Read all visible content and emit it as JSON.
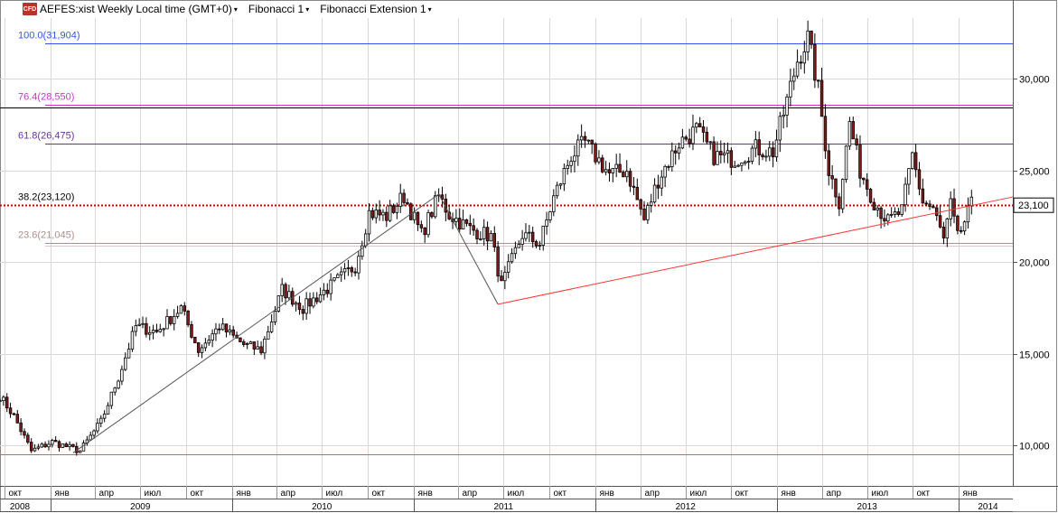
{
  "header": {
    "badge": "CFD",
    "symbol": "AEFES:xist Weekly Local time (GMT+0)",
    "study1": "Fibonacci 1",
    "study2": "Fibonacci Extension 1",
    "caret": "▾"
  },
  "chart_data": {
    "type": "candlestick",
    "yticks": [
      {
        "value": 10000,
        "label": "10,000"
      },
      {
        "value": 15000,
        "label": "15,000"
      },
      {
        "value": 20000,
        "label": "20,000"
      },
      {
        "value": 25000,
        "label": "25,000"
      },
      {
        "value": 30000,
        "label": "30,000"
      }
    ],
    "ylim": [
      7800,
      33300
    ],
    "xlim": [
      "2008-09-22",
      "2014-04-20"
    ],
    "last_price": {
      "value": 23100,
      "label": "23,100"
    },
    "fib_levels": [
      {
        "label": "100.0(31,904)",
        "value": 31904,
        "color": "#3355ee"
      },
      {
        "label": "76.4(28,550)",
        "value": 28550,
        "color": "#cc33cc"
      },
      {
        "label": "61.8(26,475)",
        "value": 26475,
        "color": "#663399"
      },
      {
        "label": "38.2(23,120)",
        "value": 23120,
        "color": "#000000",
        "dotted_color": "#cc0000"
      },
      {
        "label": "23.6(21,045)",
        "value": 21045,
        "color": "#ad8f8f"
      }
    ],
    "horizontal_lines": [
      {
        "value": 28430,
        "color": "#000000"
      },
      {
        "value": 9530,
        "color": "#ee5555"
      }
    ],
    "fib_lines": [
      {
        "from": [
          "2009-02-16",
          9600
        ],
        "to": [
          "2011-02-21",
          23700
        ],
        "color": "#555555"
      },
      {
        "from": [
          "2011-02-21",
          23700
        ],
        "to": [
          "2011-06-20",
          17700
        ],
        "color": "#555555"
      },
      {
        "from": [
          "2011-06-20",
          17700
        ],
        "to": [
          "2014-04-20",
          23550
        ],
        "color": "#ff3333"
      }
    ],
    "month_ticks": [
      {
        "date": "2008-10-01",
        "label": "окт"
      },
      {
        "date": "2009-01-01",
        "label": "янв"
      },
      {
        "date": "2009-04-01",
        "label": "апр"
      },
      {
        "date": "2009-07-01",
        "label": "июл"
      },
      {
        "date": "2009-10-01",
        "label": "окт"
      },
      {
        "date": "2010-01-01",
        "label": "янв"
      },
      {
        "date": "2010-04-01",
        "label": "апр"
      },
      {
        "date": "2010-07-01",
        "label": "июл"
      },
      {
        "date": "2010-10-01",
        "label": "окт"
      },
      {
        "date": "2011-01-01",
        "label": "янв"
      },
      {
        "date": "2011-04-01",
        "label": "апр"
      },
      {
        "date": "2011-07-01",
        "label": "июл"
      },
      {
        "date": "2011-10-01",
        "label": "окт"
      },
      {
        "date": "2012-01-01",
        "label": "янв"
      },
      {
        "date": "2012-04-01",
        "label": "апр"
      },
      {
        "date": "2012-07-01",
        "label": "июл"
      },
      {
        "date": "2012-10-01",
        "label": "окт"
      },
      {
        "date": "2013-01-01",
        "label": "янв"
      },
      {
        "date": "2013-04-01",
        "label": "апр"
      },
      {
        "date": "2013-07-01",
        "label": "июл"
      },
      {
        "date": "2013-10-01",
        "label": "окт"
      },
      {
        "date": "2014-01-01",
        "label": "янв"
      }
    ],
    "year_ticks": [
      {
        "date": "2008-07-01",
        "label": "2008"
      },
      {
        "date": "2009-07-01",
        "label": "2009"
      },
      {
        "date": "2010-07-01",
        "label": "2010"
      },
      {
        "date": "2011-07-01",
        "label": "2011"
      },
      {
        "date": "2012-07-01",
        "label": "2012"
      },
      {
        "date": "2013-07-01",
        "label": "2013"
      },
      {
        "date": "2014-03-01",
        "label": "2014"
      }
    ],
    "year_dividers": [
      "2009-01-01",
      "2010-01-01",
      "2011-01-01",
      "2012-01-01",
      "2013-01-01",
      "2014-01-01"
    ],
    "anchors": [
      [
        "2008-09-22",
        12700
      ],
      [
        "2008-10-20",
        11600
      ],
      [
        "2008-11-24",
        9700
      ],
      [
        "2009-01-05",
        10200
      ],
      [
        "2009-03-02",
        9700
      ],
      [
        "2009-04-13",
        11300
      ],
      [
        "2009-05-18",
        13700
      ],
      [
        "2009-06-22",
        16500
      ],
      [
        "2009-08-03",
        16200
      ],
      [
        "2009-09-21",
        17500
      ],
      [
        "2009-10-26",
        15200
      ],
      [
        "2009-12-07",
        16500
      ],
      [
        "2010-01-25",
        15500
      ],
      [
        "2010-03-01",
        15200
      ],
      [
        "2010-04-12",
        18500
      ],
      [
        "2010-05-24",
        17500
      ],
      [
        "2010-07-19",
        18700
      ],
      [
        "2010-09-06",
        19800
      ],
      [
        "2010-10-04",
        22700
      ],
      [
        "2010-11-08",
        22500
      ],
      [
        "2010-12-13",
        23600
      ],
      [
        "2011-01-17",
        21500
      ],
      [
        "2011-02-21",
        23600
      ],
      [
        "2011-03-14",
        22600
      ],
      [
        "2011-04-25",
        21800
      ],
      [
        "2011-06-06",
        21400
      ],
      [
        "2011-06-27",
        18700
      ],
      [
        "2011-08-08",
        21500
      ],
      [
        "2011-09-12",
        21000
      ],
      [
        "2011-10-10",
        23500
      ],
      [
        "2011-11-14",
        25800
      ],
      [
        "2011-12-12",
        26500
      ],
      [
        "2012-01-30",
        24800
      ],
      [
        "2012-03-05",
        25000
      ],
      [
        "2012-04-09",
        22300
      ],
      [
        "2012-05-07",
        24500
      ],
      [
        "2012-06-18",
        26500
      ],
      [
        "2012-07-23",
        27200
      ],
      [
        "2012-08-27",
        25800
      ],
      [
        "2012-10-08",
        25600
      ],
      [
        "2012-11-19",
        26200
      ],
      [
        "2012-12-24",
        26000
      ],
      [
        "2013-01-21",
        28800
      ],
      [
        "2013-02-11",
        31000
      ],
      [
        "2013-03-04",
        32200
      ],
      [
        "2013-03-25",
        29400
      ],
      [
        "2013-04-15",
        25000
      ],
      [
        "2013-05-06",
        23300
      ],
      [
        "2013-05-27",
        27600
      ],
      [
        "2013-06-17",
        25000
      ],
      [
        "2013-07-15",
        23300
      ],
      [
        "2013-08-12",
        22200
      ],
      [
        "2013-09-09",
        22800
      ],
      [
        "2013-09-30",
        25800
      ],
      [
        "2013-10-21",
        23300
      ],
      [
        "2013-11-11",
        22900
      ],
      [
        "2013-12-02",
        21200
      ],
      [
        "2013-12-16",
        23100
      ],
      [
        "2013-12-30",
        21300
      ],
      [
        "2014-01-27",
        23100
      ]
    ]
  }
}
